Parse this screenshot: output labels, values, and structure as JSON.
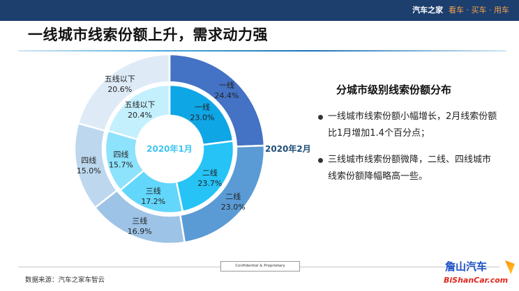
{
  "header": {
    "brand": "汽车之家",
    "brand_tag": "看车 · 买车 · 用车",
    "title": "一线城市线索份额上升，需求动力强"
  },
  "side": {
    "title": "分城市级别线索份额分布",
    "bullets": [
      "一线城市线索份额小幅增长，2月线索份额比1月增加1.4个百分点；",
      "三线城市线索份额微降，二线、四线城市线索份额降幅略高一些。"
    ]
  },
  "footer": {
    "confidential": "Confidential & Proprietary",
    "source": "数据来源：汽车之家车智云"
  },
  "watermark": {
    "cn": "詹山汽车",
    "en": "BiShanCar.com"
  },
  "chart_data": {
    "type": "pie",
    "style": "nested-donut",
    "categories": [
      "一线",
      "二线",
      "三线",
      "四线",
      "五线以下"
    ],
    "series": [
      {
        "name": "2020年2月",
        "ring": "outer",
        "values": [
          24.4,
          23.0,
          16.9,
          15.0,
          20.6
        ],
        "labels": [
          "24.4%",
          "23.0%",
          "16.9%",
          "15.0%",
          "20.6%"
        ],
        "colors": [
          "#4472c4",
          "#5b9bd5",
          "#9dc3e6",
          "#bdd7ee",
          "#deebf7"
        ]
      },
      {
        "name": "2020年1月",
        "ring": "inner",
        "values": [
          23.0,
          23.7,
          17.2,
          15.7,
          20.4
        ],
        "labels": [
          "23.0%",
          "23.7%",
          "17.2%",
          "15.7%",
          "20.4%"
        ],
        "colors": [
          "#0fa6e6",
          "#25c3f6",
          "#63d6fb",
          "#8de2fc",
          "#c4f0fe"
        ]
      }
    ],
    "legend": "none",
    "colors": {
      "label_outer": "#1f4e79",
      "label_inner": "#3cc4f2"
    }
  }
}
